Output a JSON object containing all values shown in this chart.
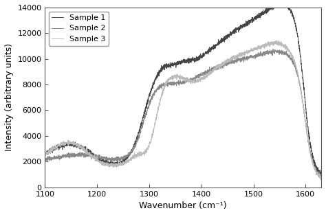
{
  "title": "",
  "xlabel": "Wavenumber (cm⁻¹)",
  "ylabel": "Intensity (arbitrary units)",
  "xlim": [
    1100,
    1630
  ],
  "ylim": [
    0,
    14000
  ],
  "yticks": [
    0,
    2000,
    4000,
    6000,
    8000,
    10000,
    12000,
    14000
  ],
  "xticks": [
    1100,
    1200,
    1300,
    1400,
    1500,
    1600
  ],
  "legend_labels": [
    "Sample 1",
    "Sample 2",
    "Sample 3"
  ],
  "colors": [
    "#444444",
    "#888888",
    "#bbbbbb"
  ],
  "background_color": "#ffffff",
  "linewidth": 0.7
}
